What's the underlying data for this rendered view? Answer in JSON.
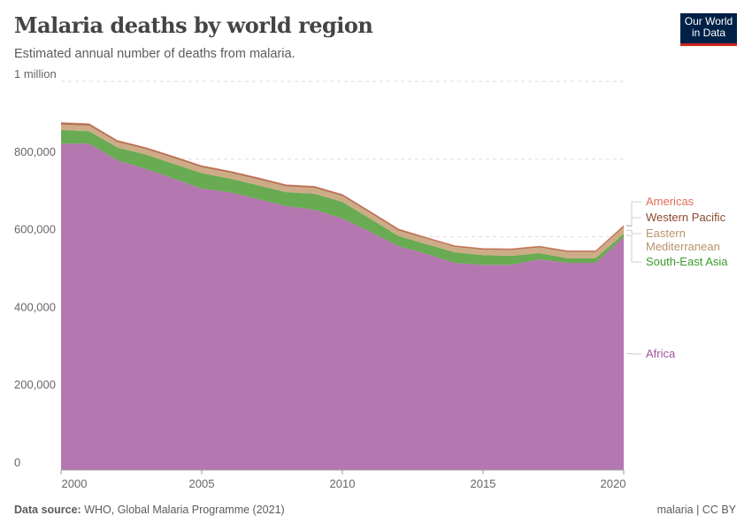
{
  "header": {
    "title": "Malaria deaths by world region",
    "subtitle": "Estimated annual number of deaths from malaria.",
    "logo": "Our World in Data"
  },
  "footer": {
    "source_label": "Data source:",
    "source": "WHO, Global Malaria Programme (2021)",
    "license": "malaria | CC BY"
  },
  "chart_data": {
    "type": "area",
    "stacked": true,
    "title": "Malaria deaths by world region",
    "subtitle": "Estimated annual number of deaths from malaria.",
    "xlabel": "",
    "ylabel": "",
    "xlim": [
      2000,
      2020
    ],
    "ylim": [
      0,
      1000000
    ],
    "x_ticks": [
      "2000",
      "2005",
      "2010",
      "2015",
      "2020"
    ],
    "x_tick_values": [
      2000,
      2005,
      2010,
      2015,
      2020
    ],
    "y_ticks": [
      "0",
      "200,000",
      "400,000",
      "600,000",
      "800,000",
      "1 million"
    ],
    "y_tick_values": [
      0,
      200000,
      400000,
      600000,
      800000,
      1000000
    ],
    "grid": "horizontal dashed",
    "legend": "right, inline labels",
    "x": [
      2000,
      2001,
      2002,
      2003,
      2004,
      2005,
      2006,
      2007,
      2008,
      2009,
      2010,
      2011,
      2012,
      2013,
      2014,
      2015,
      2016,
      2017,
      2018,
      2019,
      2020
    ],
    "series": [
      {
        "name": "Africa",
        "color": "#a2559c",
        "label_color": "#a2559c",
        "values": [
          840000,
          840000,
          797000,
          775000,
          750000,
          724000,
          715000,
          697000,
          679000,
          670000,
          647000,
          613000,
          576000,
          556000,
          533000,
          528000,
          528000,
          542000,
          533000,
          533000,
          599000
        ]
      },
      {
        "name": "South-East Asia",
        "color": "#58a23f",
        "label_color": "#3b9b29",
        "values": [
          35000,
          32000,
          33000,
          37000,
          38000,
          40000,
          35000,
          36000,
          36000,
          41000,
          43000,
          33000,
          26000,
          25000,
          27000,
          25000,
          23000,
          16000,
          12000,
          12000,
          9000
        ]
      },
      {
        "name": "Eastern Mediterranean",
        "color": "#c9a27a",
        "label_color": "#b8936a",
        "values": [
          14000,
          14000,
          14000,
          14000,
          15000,
          15000,
          15000,
          15000,
          15000,
          15000,
          15000,
          15000,
          14000,
          14000,
          14000,
          14000,
          15000,
          15000,
          16000,
          16000,
          17000
        ]
      },
      {
        "name": "Western Pacific",
        "color": "#a8613f",
        "label_color": "#8c4a2c",
        "values": [
          5000,
          5000,
          4000,
          4000,
          4000,
          4000,
          4000,
          4000,
          4000,
          4000,
          4000,
          4000,
          4000,
          3000,
          3000,
          3000,
          3000,
          3000,
          3000,
          3000,
          4000
        ]
      },
      {
        "name": "Americas",
        "color": "#e56e5a",
        "label_color": "#e26d5a",
        "values": [
          1000,
          1000,
          1000,
          1000,
          1000,
          1000,
          1000,
          1000,
          1000,
          1000,
          1000,
          1000,
          1000,
          1000,
          1000,
          1000,
          1000,
          1000,
          1000,
          1000,
          1000
        ]
      }
    ]
  }
}
